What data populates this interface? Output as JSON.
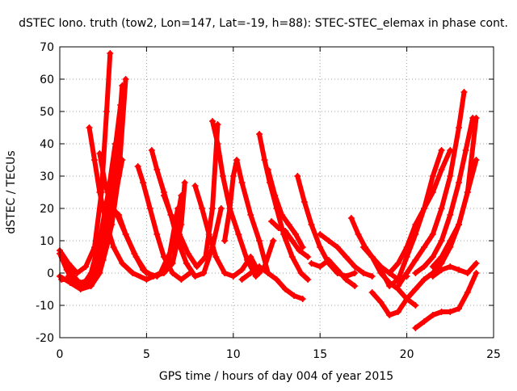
{
  "chart_data": {
    "type": "scatter",
    "title": "dSTEC Iono. truth (tow2, Lon=147, Lat=-19, h=88): STEC-STEC_elemax in phase cont.",
    "xlabel": "GPS time / hours of day 004 of year 2015",
    "ylabel": "dSTEC  / TECUs",
    "xlim": [
      0,
      25
    ],
    "ylim": [
      -20,
      70
    ],
    "x_ticks": [
      0,
      5,
      10,
      15,
      20,
      25
    ],
    "y_ticks": [
      -20,
      -10,
      0,
      10,
      20,
      30,
      40,
      50,
      60,
      70
    ],
    "grid": true,
    "marker": "+",
    "color": "#ff0000",
    "series": [
      {
        "x": [
          0.0,
          0.5,
          1.0,
          1.5,
          2.0,
          2.4,
          2.7,
          2.9
        ],
        "y": [
          7,
          3,
          0,
          2,
          8,
          25,
          50,
          68
        ]
      },
      {
        "x": [
          0.0,
          0.4,
          0.8,
          1.3,
          1.8,
          2.3,
          2.8,
          3.2
        ],
        "y": [
          6,
          1,
          -3,
          -4,
          0,
          10,
          25,
          40
        ]
      },
      {
        "x": [
          0.0,
          0.6,
          1.2,
          1.8,
          2.3,
          2.8,
          3.2,
          3.6
        ],
        "y": [
          -1,
          -3,
          -5,
          -4,
          0,
          10,
          30,
          58
        ]
      },
      {
        "x": [
          0.1,
          0.7,
          1.3,
          1.9,
          2.5,
          3.0,
          3.4,
          3.8
        ],
        "y": [
          -2,
          -2,
          -3,
          -1,
          4,
          15,
          30,
          60
        ]
      },
      {
        "x": [
          0.5,
          1.0,
          1.5,
          2.0,
          2.5,
          3.0,
          3.5
        ],
        "y": [
          -1,
          -3,
          -4,
          0,
          10,
          30,
          52
        ]
      },
      {
        "x": [
          0.3,
          0.8,
          1.3,
          1.8,
          2.4,
          3.0,
          3.6
        ],
        "y": [
          4,
          -1,
          -4,
          -3,
          4,
          18,
          35
        ]
      },
      {
        "x": [
          1.7,
          2.0,
          2.3,
          2.7,
          3.1,
          3.6,
          4.2,
          5.0,
          5.8,
          6.5,
          7.0
        ],
        "y": [
          45,
          35,
          25,
          15,
          8,
          3,
          0,
          -2,
          0,
          8,
          24
        ]
      },
      {
        "x": [
          2.3,
          2.6,
          2.9,
          3.3,
          3.8,
          4.4,
          5.0,
          5.6,
          6.2,
          6.8
        ],
        "y": [
          37,
          28,
          22,
          18,
          12,
          5,
          0,
          -1,
          2,
          20
        ]
      },
      {
        "x": [
          3.0,
          3.4,
          3.8,
          4.3,
          4.8,
          5.4,
          6.0,
          6.5,
          7.0,
          7.2
        ],
        "y": [
          20,
          18,
          12,
          6,
          1,
          -1,
          0,
          3,
          15,
          28
        ]
      },
      {
        "x": [
          4.5,
          4.8,
          5.2,
          5.6,
          6.0,
          6.5,
          7.0,
          7.5
        ],
        "y": [
          33,
          28,
          20,
          12,
          5,
          0,
          -2,
          0
        ]
      },
      {
        "x": [
          5.3,
          5.6,
          6.0,
          6.4,
          6.8,
          7.3,
          7.8,
          8.3,
          8.8,
          9.3
        ],
        "y": [
          38,
          32,
          25,
          18,
          10,
          3,
          -1,
          0,
          8,
          20
        ]
      },
      {
        "x": [
          6.0,
          6.4,
          6.9,
          7.4,
          7.9,
          8.4,
          8.8,
          9.1
        ],
        "y": [
          24,
          18,
          12,
          6,
          2,
          5,
          20,
          46
        ]
      },
      {
        "x": [
          7.8,
          8.2,
          8.6,
          9.0,
          9.5,
          10.0,
          10.5,
          11.0,
          11.5
        ],
        "y": [
          27,
          20,
          12,
          5,
          0,
          -1,
          1,
          5,
          0
        ]
      },
      {
        "x": [
          8.8,
          9.1,
          9.4,
          9.8,
          10.3,
          10.8,
          11.3,
          11.8,
          12.3
        ],
        "y": [
          47,
          40,
          30,
          20,
          12,
          4,
          -1,
          2,
          10
        ]
      },
      {
        "x": [
          9.5,
          9.8,
          10.0,
          10.2,
          10.5,
          11.0,
          11.5,
          12.0
        ],
        "y": [
          10,
          20,
          30,
          35,
          28,
          18,
          10,
          0
        ]
      },
      {
        "x": [
          11.5,
          11.8,
          12.1,
          12.5,
          12.9,
          13.4,
          13.9,
          14.3
        ],
        "y": [
          43,
          35,
          28,
          20,
          12,
          5,
          0,
          -2
        ]
      },
      {
        "x": [
          12.0,
          12.4,
          12.8,
          13.2,
          13.6,
          14.0
        ],
        "y": [
          32,
          24,
          18,
          15,
          12,
          8
        ]
      },
      {
        "x": [
          12.2,
          12.6,
          13.0,
          13.4,
          13.8,
          14.3
        ],
        "y": [
          16,
          14,
          13,
          10,
          7,
          5
        ]
      },
      {
        "x": [
          10.5,
          11.0,
          11.5,
          12.0,
          12.5,
          13.0,
          13.5,
          14.0
        ],
        "y": [
          -2,
          0,
          2,
          0,
          -2,
          -5,
          -7,
          -8
        ]
      },
      {
        "x": [
          13.7,
          14.1,
          14.5,
          15.0,
          15.5,
          16.0,
          16.5,
          17.0
        ],
        "y": [
          30,
          22,
          15,
          8,
          3,
          0,
          -1,
          0
        ]
      },
      {
        "x": [
          14.5,
          15.0,
          15.5,
          16.0,
          16.5,
          17.0
        ],
        "y": [
          3,
          2,
          4,
          1,
          -2,
          -4
        ]
      },
      {
        "x": [
          15.0,
          15.5,
          16.0,
          16.5,
          17.0,
          17.5,
          18.0
        ],
        "y": [
          12,
          10,
          8,
          5,
          2,
          0,
          -1
        ]
      },
      {
        "x": [
          16.8,
          17.2,
          17.6,
          18.0,
          18.5,
          19.0,
          19.5,
          20.0
        ],
        "y": [
          17,
          12,
          8,
          5,
          2,
          0,
          -2,
          -1
        ]
      },
      {
        "x": [
          17.5,
          18.0,
          18.5,
          19.0,
          19.5,
          20.0,
          20.5
        ],
        "y": [
          8,
          5,
          0,
          -3,
          -5,
          -8,
          -10
        ]
      },
      {
        "x": [
          18.0,
          18.5,
          19.0,
          19.5,
          20.0,
          20.5,
          21.0,
          21.5
        ],
        "y": [
          -6,
          -9,
          -13,
          -12,
          -8,
          -5,
          -2,
          0
        ]
      },
      {
        "x": [
          20.5,
          21.0,
          21.5,
          22.0,
          22.5,
          23.0,
          23.5,
          24.0
        ],
        "y": [
          -17,
          -15,
          -13,
          -12,
          -12,
          -11,
          -6,
          0
        ]
      },
      {
        "x": [
          18.0,
          18.5,
          19.0,
          19.5,
          20.0,
          20.5,
          21.0,
          21.5,
          22.0
        ],
        "y": [
          5,
          1,
          -4,
          -2,
          5,
          12,
          20,
          30,
          38
        ]
      },
      {
        "x": [
          19.0,
          19.5,
          20.0,
          20.5,
          21.0,
          21.5,
          22.0,
          22.5
        ],
        "y": [
          0,
          3,
          8,
          15,
          20,
          25,
          32,
          38
        ]
      },
      {
        "x": [
          19.5,
          20.0,
          20.5,
          21.0,
          21.5,
          22.0,
          22.5,
          23.0,
          23.3
        ],
        "y": [
          -4,
          0,
          4,
          8,
          12,
          20,
          30,
          45,
          56
        ]
      },
      {
        "x": [
          20.5,
          21.0,
          21.5,
          22.0,
          22.5,
          23.0,
          23.4,
          23.8
        ],
        "y": [
          0,
          2,
          5,
          10,
          18,
          28,
          38,
          48
        ]
      },
      {
        "x": [
          21.0,
          21.5,
          22.0,
          22.5,
          23.0,
          23.5,
          24.0
        ],
        "y": [
          -2,
          0,
          3,
          8,
          15,
          25,
          48
        ]
      },
      {
        "x": [
          21.5,
          22.0,
          22.5,
          23.0,
          23.5,
          24.0
        ],
        "y": [
          2,
          5,
          10,
          15,
          25,
          35
        ]
      },
      {
        "x": [
          21.5,
          22.0,
          22.5,
          23.0,
          23.5,
          24.0
        ],
        "y": [
          -1,
          1,
          2,
          1,
          0,
          3
        ]
      }
    ]
  }
}
